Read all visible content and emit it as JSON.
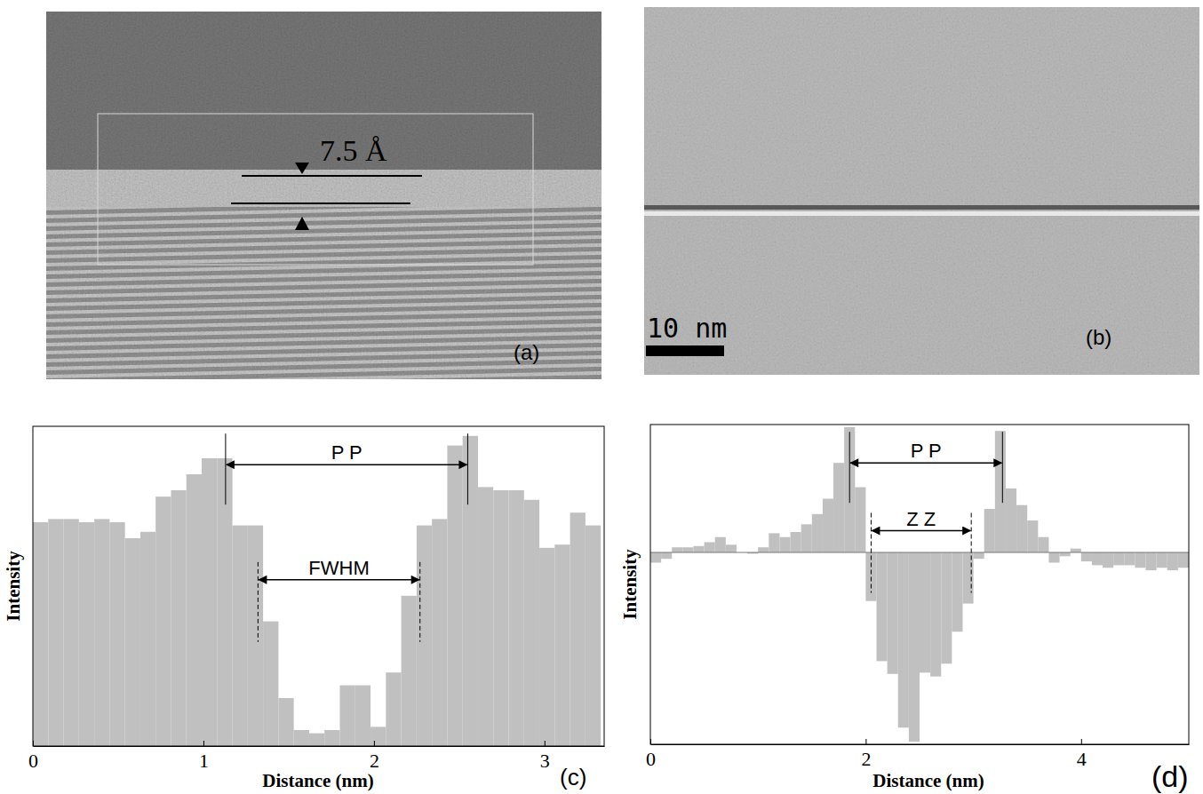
{
  "chart_data": [
    {
      "type": "image",
      "panel_label": "(a)",
      "annotations": [
        {
          "text": "7.5 Å"
        }
      ]
    },
    {
      "type": "image",
      "panel_label": "(b)",
      "annotations": [
        {
          "text": "10 nm"
        }
      ]
    },
    {
      "type": "histogram",
      "panel_label": "(c)",
      "xlabel": "Distance (nm)",
      "ylabel": "Intensity",
      "bins": [
        0,
        0.09,
        0.18,
        0.27,
        0.36,
        0.45,
        0.54,
        0.63,
        0.72,
        0.81,
        0.9,
        0.99,
        1.08,
        1.17,
        1.26,
        1.35,
        1.44,
        1.53,
        1.62,
        1.71,
        1.8,
        1.89,
        1.98,
        2.07,
        2.16,
        2.25,
        2.34,
        2.43,
        2.52,
        2.61,
        2.7,
        2.79,
        2.88,
        2.97,
        3.06,
        3.15,
        3.24,
        3.33
      ],
      "values": [
        70,
        71,
        71,
        70,
        71,
        70,
        65,
        67,
        78,
        80,
        85,
        90,
        90,
        69,
        69,
        39,
        15,
        5,
        4,
        5,
        19,
        19,
        6,
        23,
        47,
        69,
        71,
        94,
        97,
        81,
        80,
        80,
        77,
        62,
        63,
        73,
        69
      ],
      "color": "#c0c0c0",
      "xlim": [
        0,
        3.35
      ],
      "xticks": [
        0,
        1,
        2,
        3
      ],
      "ylim": [
        0,
        100
      ],
      "tick_labels": "x",
      "annotations": [
        {
          "text": "P P",
          "x": [
            1.13,
            2.55
          ],
          "y": 88,
          "line_style": "solid"
        },
        {
          "text": "FWHM",
          "x": [
            1.32,
            2.27
          ],
          "y": 52,
          "line_style": "dashed"
        }
      ]
    },
    {
      "type": "histogram",
      "panel_label": "(d)",
      "xlabel": "Distance (nm)",
      "ylabel": "Intensity",
      "bins": [
        0,
        0.1,
        0.2,
        0.3,
        0.4,
        0.5,
        0.6,
        0.7,
        0.8,
        0.9,
        1,
        1.1,
        1.2,
        1.3,
        1.4,
        1.5,
        1.6,
        1.7,
        1.8,
        1.9,
        2,
        2.1,
        2.2,
        2.3,
        2.4,
        2.5,
        2.6,
        2.7,
        2.8,
        2.9,
        3,
        3.1,
        3.2,
        3.3,
        3.4,
        3.5,
        3.6,
        3.7,
        3.8,
        3.9,
        4,
        4.1,
        4.2,
        4.3,
        4.4,
        4.5,
        4.6,
        4.7,
        4.8,
        4.9,
        5
      ],
      "values": [
        -8,
        -5,
        4,
        4,
        5,
        8,
        12,
        6,
        0,
        -1,
        4,
        15,
        12,
        16,
        22,
        30,
        42,
        70,
        98,
        51,
        -38,
        -85,
        -95,
        -137,
        -148,
        -94,
        -97,
        -87,
        -62,
        -40,
        -5,
        34,
        95,
        50,
        37,
        25,
        12,
        -8,
        -3,
        3,
        -7,
        -10,
        -12,
        -10,
        -10,
        -12,
        -14,
        -12,
        -14,
        -12
      ],
      "color": "#c0c0c0",
      "xlim": [
        0,
        5
      ],
      "xticks": [
        0,
        2,
        4
      ],
      "ylim": [
        -150,
        100
      ],
      "tick_labels": "x",
      "annotations": [
        {
          "text": "P P",
          "x": [
            1.85,
            3.27
          ],
          "y": 70,
          "line_style": "solid"
        },
        {
          "text": "Z Z",
          "x": [
            2.05,
            2.98
          ],
          "y": 17,
          "line_style": "dashed"
        }
      ]
    }
  ]
}
